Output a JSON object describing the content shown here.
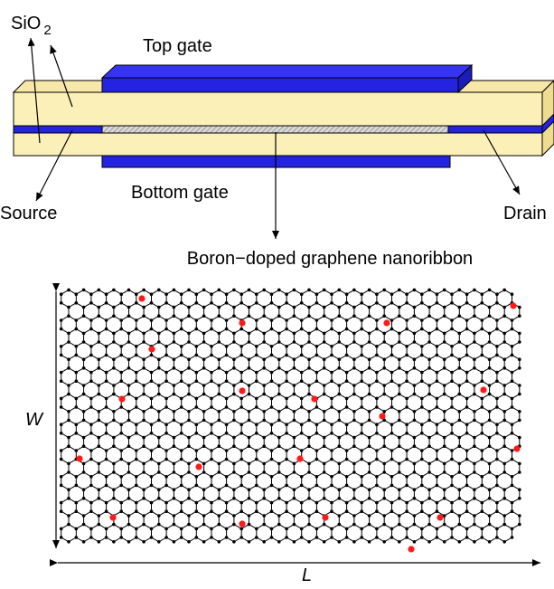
{
  "labels": {
    "oxide": "SiO",
    "oxide_subscript": "2",
    "top_gate": "Top gate",
    "bottom_gate": "Bottom gate",
    "source": "Source",
    "drain": "Drain",
    "ribbon": "Boron−doped graphene nanoribbon",
    "width": "W",
    "length": "L"
  }
}
